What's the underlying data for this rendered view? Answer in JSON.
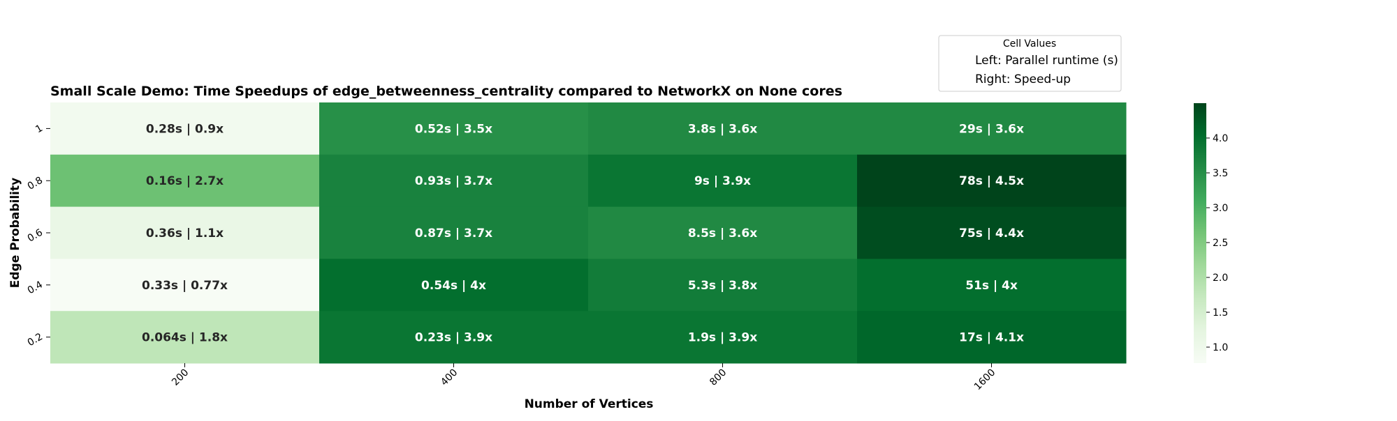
{
  "chart_data": {
    "type": "heatmap",
    "title": "Small Scale Demo: Time Speedups of edge_betweenness_centrality compared to NetworkX on None cores",
    "xlabel": "Number of Vertices",
    "ylabel": "Edge Probability",
    "x_categories": [
      "200",
      "400",
      "800",
      "1600"
    ],
    "y_categories": [
      "1",
      "0.8",
      "0.6",
      "0.4",
      "0.2"
    ],
    "values": [
      [
        0.9,
        3.5,
        3.6,
        3.6
      ],
      [
        2.7,
        3.7,
        3.9,
        4.5
      ],
      [
        1.1,
        3.7,
        3.6,
        4.4
      ],
      [
        0.77,
        4.0,
        3.8,
        4.0
      ],
      [
        1.8,
        3.9,
        3.9,
        4.1
      ]
    ],
    "cell_labels": [
      [
        "0.28s | 0.9x",
        "0.52s | 3.5x",
        "3.8s | 3.6x",
        "29s | 3.6x"
      ],
      [
        "0.16s | 2.7x",
        "0.93s | 3.7x",
        "9s | 3.9x",
        "78s | 4.5x"
      ],
      [
        "0.36s | 1.1x",
        "0.87s | 3.7x",
        "8.5s | 3.6x",
        "75s | 4.4x"
      ],
      [
        "0.33s | 0.77x",
        "0.54s | 4x",
        "5.3s | 3.8x",
        "51s | 4x"
      ],
      [
        "0.064s | 1.8x",
        "0.23s | 3.9x",
        "1.9s | 3.9x",
        "17s | 4.1x"
      ]
    ],
    "colormap": "Greens",
    "colorbar": {
      "range": [
        0.77,
        4.5
      ],
      "ticks": [
        1.0,
        1.5,
        2.0,
        2.5,
        3.0,
        3.5,
        4.0
      ],
      "tick_labels": [
        "1.0",
        "1.5",
        "2.0",
        "2.5",
        "3.0",
        "3.5",
        "4.0"
      ]
    },
    "legend": {
      "title": "Cell Values",
      "entries": [
        "Left: Parallel runtime (s)",
        "Right: Speed-up"
      ],
      "placement": "top-right"
    },
    "grid": false
  }
}
